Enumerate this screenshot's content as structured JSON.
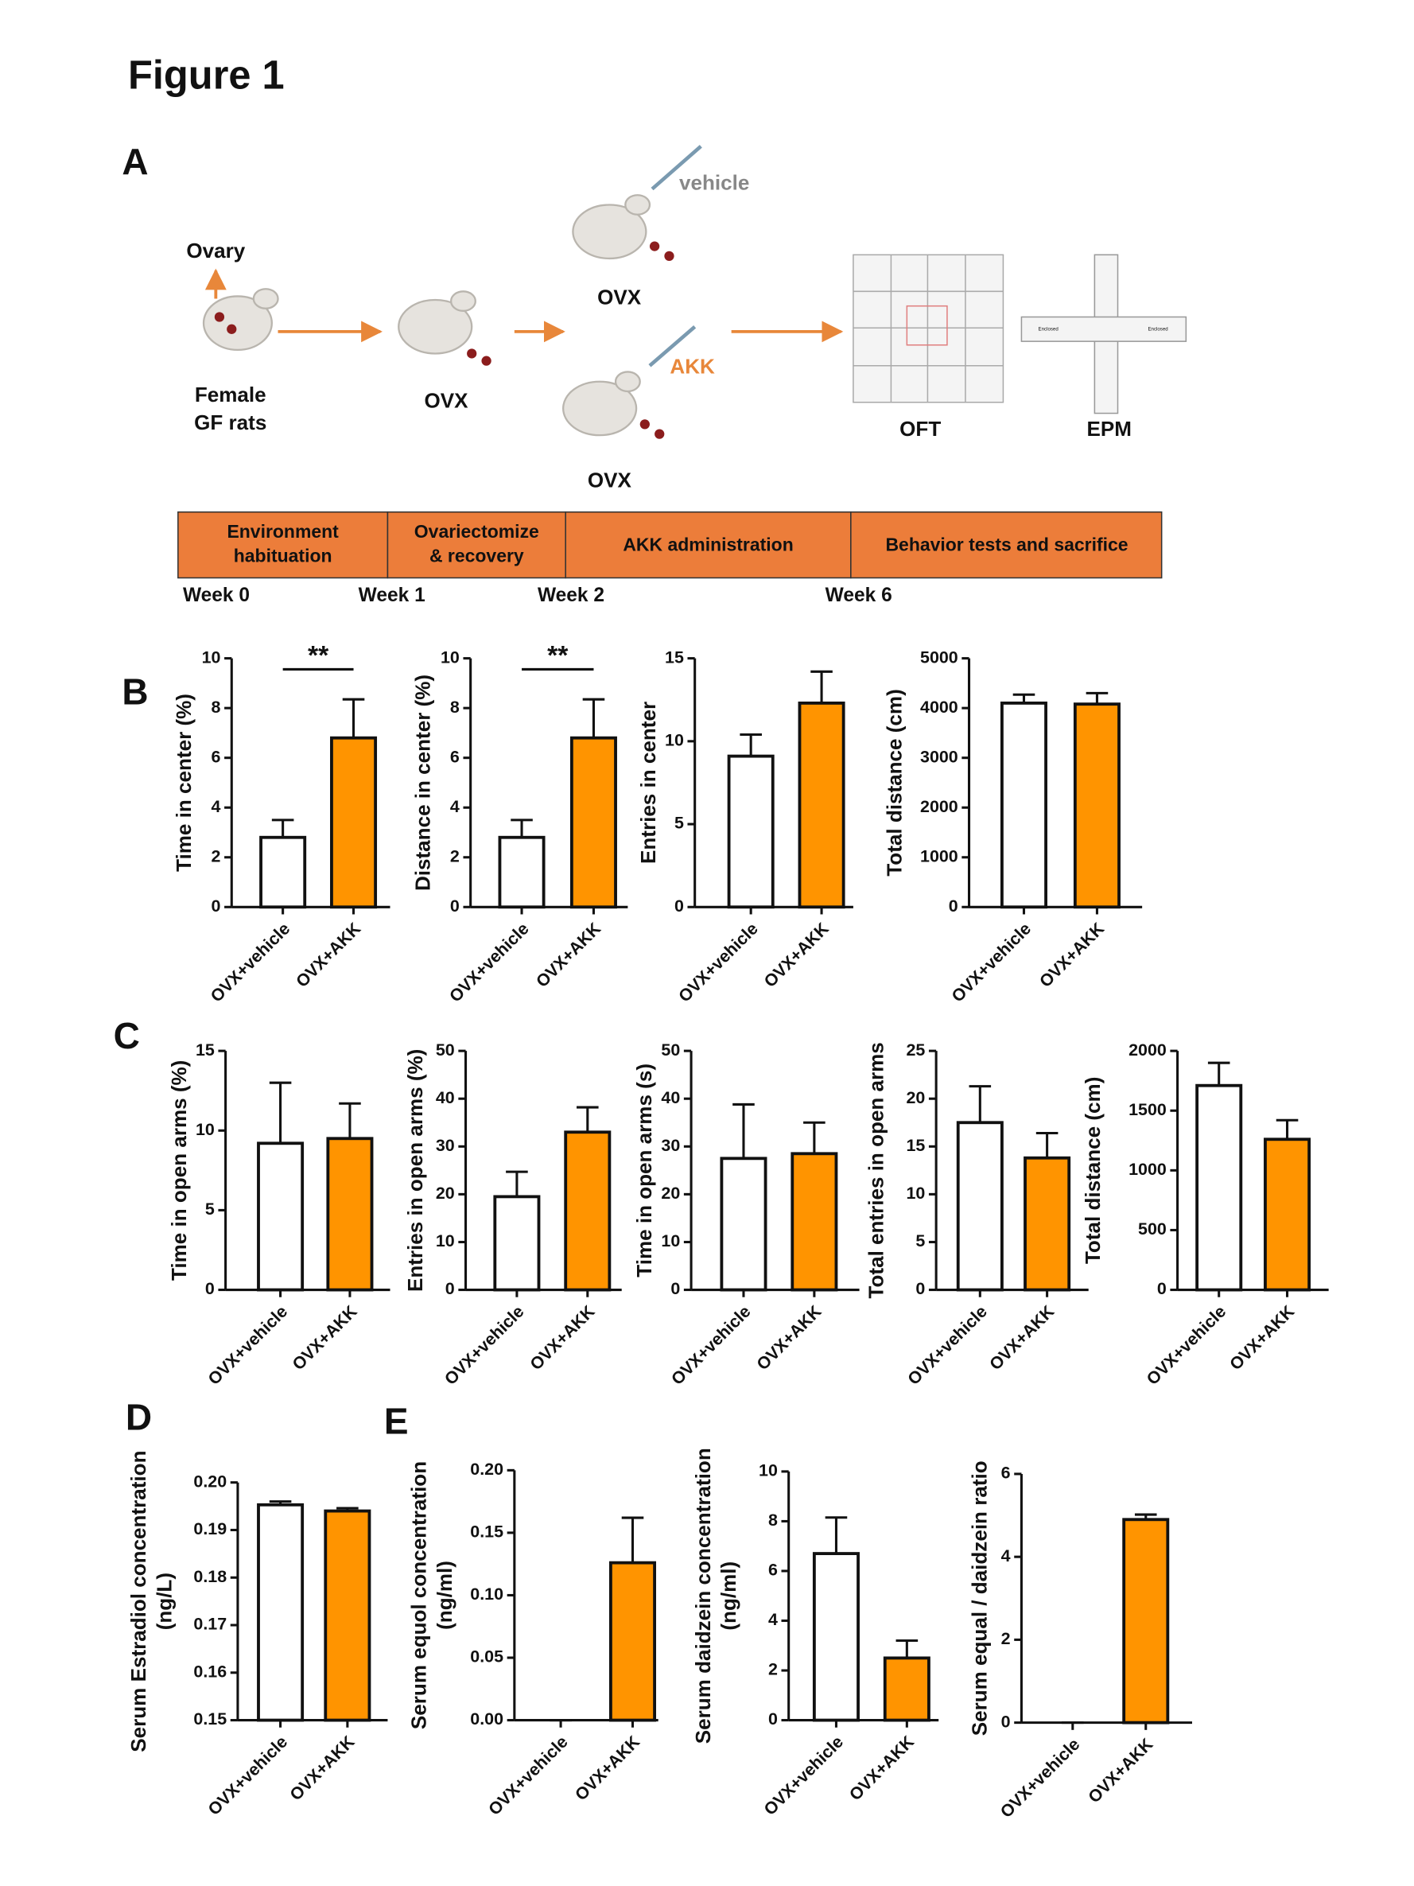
{
  "figure_title": "Figure 1",
  "panel_a": {
    "label": "A",
    "ovary": "Ovary",
    "start": [
      "Female",
      "GF rats"
    ],
    "ovx_labels": [
      "OVX",
      "OVX",
      "OVX"
    ],
    "vehicle": "vehicle",
    "akk": "AKK",
    "oft": "OFT",
    "epm": "EPM",
    "epm_arms": [
      "Enclosed",
      "Enclosed"
    ],
    "timeline": [
      [
        "Environment",
        "habituation"
      ],
      [
        "Ovariectomize",
        "& recovery"
      ],
      [
        "AKK administration"
      ],
      [
        "Behavior tests and sacrifice"
      ]
    ],
    "weeks": [
      "Week 0",
      "Week 1",
      "Week 2",
      "Week 6"
    ]
  },
  "panel_labels": [
    "B",
    "C",
    "D",
    "E"
  ],
  "chart_data": [
    {
      "type": "bar",
      "ylabel": [
        "Time in center (%)"
      ],
      "categories": [
        "OVX+vehicle",
        "OVX+AKK"
      ],
      "values": [
        2.8,
        6.8
      ],
      "errors": [
        0.7,
        1.55
      ],
      "colors": [
        "#ffffff",
        "#ff9400"
      ],
      "ylim": [
        0,
        10
      ],
      "yticks": [
        0,
        2,
        4,
        6,
        8,
        10
      ],
      "annotation": "**"
    },
    {
      "type": "bar",
      "ylabel": [
        "Distance in center (%)"
      ],
      "categories": [
        "OVX+vehicle",
        "OVX+AKK"
      ],
      "values": [
        2.8,
        6.8
      ],
      "errors": [
        0.7,
        1.55
      ],
      "colors": [
        "#ffffff",
        "#ff9400"
      ],
      "ylim": [
        0,
        10
      ],
      "yticks": [
        0,
        2,
        4,
        6,
        8,
        10
      ],
      "annotation": "**"
    },
    {
      "type": "bar",
      "ylabel": [
        "Entries in center"
      ],
      "categories": [
        "OVX+vehicle",
        "OVX+AKK"
      ],
      "values": [
        9.1,
        12.3
      ],
      "errors": [
        1.3,
        1.9
      ],
      "colors": [
        "#ffffff",
        "#ff9400"
      ],
      "ylim": [
        0,
        15
      ],
      "yticks": [
        0,
        5,
        10,
        15
      ]
    },
    {
      "type": "bar",
      "ylabel": [
        "Total distance (cm)"
      ],
      "categories": [
        "OVX+vehicle",
        "OVX+AKK"
      ],
      "values": [
        4100,
        4080
      ],
      "errors": [
        170,
        220
      ],
      "colors": [
        "#ffffff",
        "#ff9400"
      ],
      "ylim": [
        0,
        5000
      ],
      "yticks": [
        0,
        1000,
        2000,
        3000,
        4000,
        5000
      ]
    },
    {
      "type": "bar",
      "ylabel": [
        "Time in open arms (%)"
      ],
      "categories": [
        "OVX+vehicle",
        "OVX+AKK"
      ],
      "values": [
        9.2,
        9.5
      ],
      "errors": [
        3.8,
        2.2
      ],
      "colors": [
        "#ffffff",
        "#ff9400"
      ],
      "ylim": [
        0,
        15
      ],
      "yticks": [
        0,
        5,
        10,
        15
      ]
    },
    {
      "type": "bar",
      "ylabel": [
        "Entries in open arms (%)"
      ],
      "categories": [
        "OVX+vehicle",
        "OVX+AKK"
      ],
      "values": [
        19.5,
        33
      ],
      "errors": [
        5.2,
        5.2
      ],
      "colors": [
        "#ffffff",
        "#ff9400"
      ],
      "ylim": [
        0,
        50
      ],
      "yticks": [
        0,
        10,
        20,
        30,
        40,
        50
      ]
    },
    {
      "type": "bar",
      "ylabel": [
        "Time in open arms (s)"
      ],
      "categories": [
        "OVX+vehicle",
        "OVX+AKK"
      ],
      "values": [
        27.5,
        28.5
      ],
      "errors": [
        11.3,
        6.5
      ],
      "colors": [
        "#ffffff",
        "#ff9400"
      ],
      "ylim": [
        0,
        50
      ],
      "yticks": [
        0,
        10,
        20,
        30,
        40,
        50
      ]
    },
    {
      "type": "bar",
      "ylabel": [
        "Total entries in  open arms"
      ],
      "categories": [
        "OVX+vehicle",
        "OVX+AKK"
      ],
      "values": [
        17.5,
        13.8
      ],
      "errors": [
        3.8,
        2.6
      ],
      "colors": [
        "#ffffff",
        "#ff9400"
      ],
      "ylim": [
        0,
        25
      ],
      "yticks": [
        0,
        5,
        10,
        15,
        20,
        25
      ]
    },
    {
      "type": "bar",
      "ylabel": [
        "Total distance (cm)"
      ],
      "categories": [
        "OVX+vehicle",
        "OVX+AKK"
      ],
      "values": [
        1710,
        1260
      ],
      "errors": [
        190,
        160
      ],
      "colors": [
        "#ffffff",
        "#ff9400"
      ],
      "ylim": [
        0,
        2000
      ],
      "yticks": [
        0,
        500,
        1000,
        1500,
        2000
      ]
    },
    {
      "type": "bar",
      "ylabel": [
        "Serum Estradiol concentration",
        "(ng/L)"
      ],
      "categories": [
        "OVX+vehicle",
        "OVX+AKK"
      ],
      "values": [
        0.1953,
        0.194
      ],
      "errors": [
        0.0007,
        0.0006
      ],
      "colors": [
        "#ffffff",
        "#ff9400"
      ],
      "ylim": [
        0.15,
        0.2
      ],
      "yticks": [
        0.15,
        0.16,
        0.17,
        0.18,
        0.19,
        {
          "value": 0.2,
          "label": "0.20"
        }
      ]
    },
    {
      "type": "bar",
      "ylabel": [
        "Serum equol concentration",
        "(ng/ml)"
      ],
      "categories": [
        "OVX+vehicle",
        "OVX+AKK"
      ],
      "values": [
        0,
        0.126
      ],
      "errors": [
        0,
        0.036
      ],
      "colors": [
        "#ffffff",
        "#ff9400"
      ],
      "ylim": [
        0,
        0.2
      ],
      "yticks": [
        {
          "value": 0,
          "label": "0.00"
        },
        0.05,
        {
          "value": 0.1,
          "label": "0.10"
        },
        0.15,
        {
          "value": 0.2,
          "label": "0.20"
        }
      ]
    },
    {
      "type": "bar",
      "ylabel": [
        "Serum daidzein concentration",
        "(ng/ml)"
      ],
      "categories": [
        "OVX+vehicle",
        "OVX+AKK"
      ],
      "values": [
        6.7,
        2.5
      ],
      "errors": [
        1.45,
        0.7
      ],
      "colors": [
        "#ffffff",
        "#ff9400"
      ],
      "ylim": [
        0,
        10
      ],
      "yticks": [
        0,
        2,
        4,
        6,
        8,
        10
      ]
    },
    {
      "type": "bar",
      "ylabel": [
        "Serum equal / daidzein ratio"
      ],
      "categories": [
        "OVX+vehicle",
        "OVX+AKK"
      ],
      "values": [
        0,
        4.9
      ],
      "errors": [
        0,
        0.12
      ],
      "colors": [
        "#ffffff",
        "#ff9400"
      ],
      "ylim": [
        0,
        6
      ],
      "yticks": [
        0,
        2,
        4,
        6
      ]
    }
  ]
}
